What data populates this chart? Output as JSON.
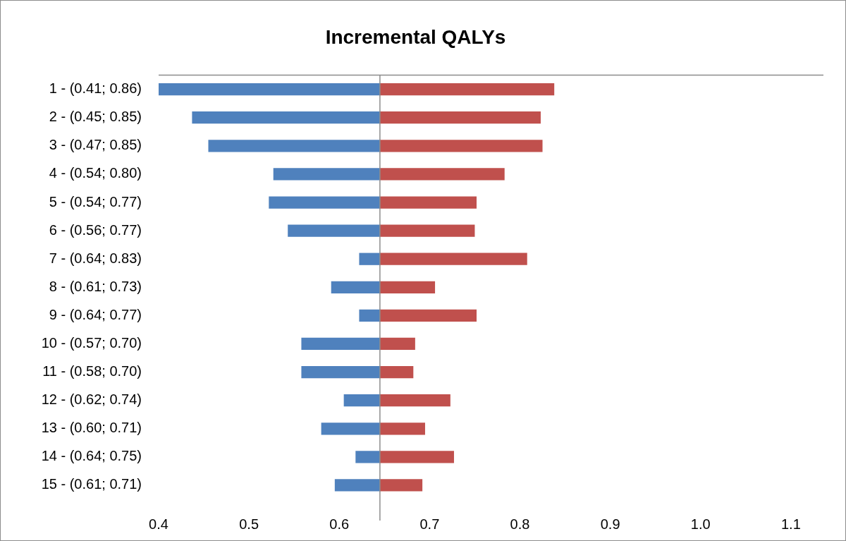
{
  "chart_data": {
    "type": "bar",
    "orientation": "horizontal",
    "title": "Incremental QALYs",
    "categories": [
      "1 - (0.41; 0.86)",
      "2 - (0.45; 0.85)",
      "3 - (0.47; 0.85)",
      "4 - (0.54; 0.80)",
      "5 - (0.54; 0.77)",
      "6 - (0.56; 0.77)",
      "7 - (0.64; 0.83)",
      "8 - (0.61; 0.73)",
      "9 - (0.64; 0.77)",
      "10 - (0.57; 0.70)",
      "11 - (0.58; 0.70)",
      "12 - (0.62; 0.74)",
      "13 - (0.60; 0.71)",
      "14 - (0.64; 0.75)",
      "15 - (0.61; 0.71)"
    ],
    "series": [
      {
        "color": "#4f81bd",
        "base": [
          0.645,
          0.645,
          0.645,
          0.645,
          0.645,
          0.645,
          0.645,
          0.645,
          0.645,
          0.645,
          0.645,
          0.645,
          0.645,
          0.645,
          0.645
        ],
        "values": [
          -0.245,
          -0.208,
          -0.19,
          -0.118,
          -0.123,
          -0.102,
          -0.023,
          -0.054,
          -0.023,
          -0.087,
          -0.087,
          -0.04,
          -0.065,
          -0.027,
          -0.05
        ]
      },
      {
        "color": "#c0504d",
        "base": [
          0.645,
          0.645,
          0.645,
          0.645,
          0.645,
          0.645,
          0.645,
          0.645,
          0.645,
          0.645,
          0.645,
          0.645,
          0.645,
          0.645,
          0.645
        ],
        "values": [
          0.193,
          0.178,
          0.18,
          0.138,
          0.107,
          0.105,
          0.163,
          0.061,
          0.107,
          0.039,
          0.037,
          0.078,
          0.05,
          0.082,
          0.047
        ]
      }
    ],
    "xlim": [
      0.4,
      1.136
    ],
    "xticks": [
      {
        "value": 0.4,
        "label": "0.4"
      },
      {
        "value": 0.5,
        "label": "0.5"
      },
      {
        "value": 0.6,
        "label": "0.6"
      },
      {
        "value": 0.7,
        "label": "0.7"
      },
      {
        "value": 0.8,
        "label": "0.8"
      },
      {
        "value": 0.9,
        "label": "0.9"
      },
      {
        "value": 1,
        "label": "1.0"
      },
      {
        "value": 1.1,
        "label": "1.1"
      }
    ],
    "ref_lines": [
      {
        "axis": "x",
        "value": 0.645,
        "color": "#8c8c8c"
      }
    ],
    "grid": false,
    "legend": false
  }
}
